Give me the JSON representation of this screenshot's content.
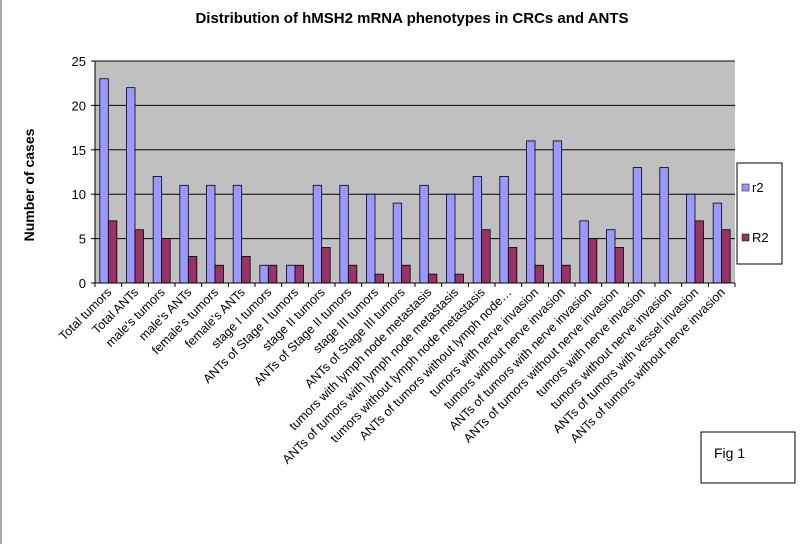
{
  "chart_data": {
    "type": "bar",
    "title": "Distribution of hMSH2 mRNA phenotypes in CRCs and ANTS",
    "xlabel": "",
    "ylabel": "Number of cases",
    "ylim": [
      0,
      25
    ],
    "yticks": [
      "0",
      "5",
      "10",
      "15",
      "20",
      "25"
    ],
    "grid": "horizontal",
    "legend_position": "right",
    "categories": [
      "Total tumors",
      "Total ANTs",
      "male's tumors",
      "male's ANTs",
      "female's tumors",
      "female's ANTs",
      "stage I tumors",
      "ANTs of Stage I tumors",
      "stage II tumors",
      "ANTs of Stage II tumors",
      "stage III tumors",
      "ANTs of Stage III tumors",
      "tumors with lymph node metastasis",
      "ANTs of tumors with lymph node metastasis",
      "tumors without lymph node metastasis",
      "ANTs of tumors without lymph node…",
      "tumors with nerve invasion",
      "tumors without nerve invasion",
      "ANTs of tumors with nerve invasion",
      "ANTs of tumors without nerve invasion",
      "tumors with nerve invasion",
      "tumors without nerve invasion",
      "ANTs of tumors with vessel invasion",
      "ANTs of tumors without nerve invasion"
    ],
    "series": [
      {
        "name": "r2",
        "color": "#9999ff",
        "values": [
          23,
          22,
          12,
          11,
          11,
          11,
          2,
          2,
          11,
          11,
          10,
          9,
          11,
          10,
          12,
          12,
          16,
          16,
          7,
          6,
          13,
          13,
          10,
          9
        ]
      },
      {
        "name": "R2",
        "color": "#993366",
        "values": [
          7,
          6,
          5,
          3,
          2,
          3,
          2,
          2,
          4,
          2,
          1,
          2,
          1,
          1,
          6,
          4,
          2,
          2,
          5,
          4,
          0,
          0,
          7,
          6
        ]
      }
    ]
  },
  "figure_note": "Fig 1"
}
